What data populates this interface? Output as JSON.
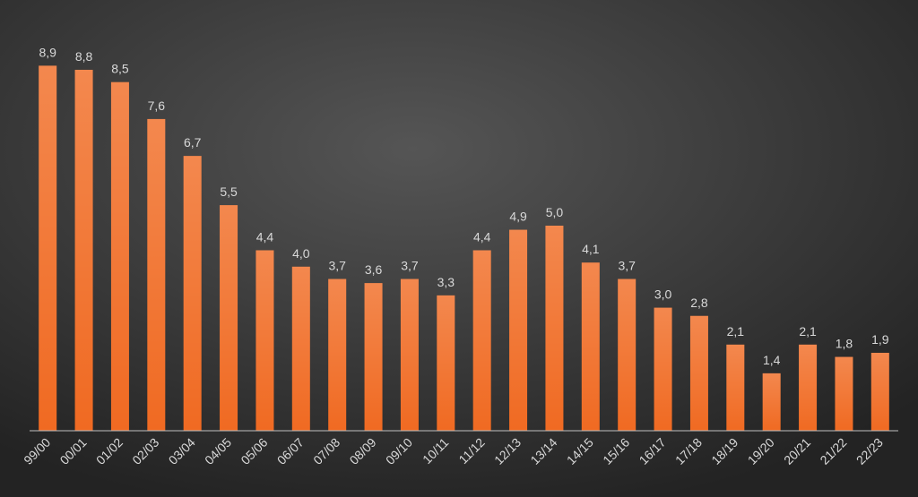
{
  "chart_data": {
    "type": "bar",
    "categories": [
      "99/00",
      "00/01",
      "01/02",
      "02/03",
      "03/04",
      "04/05",
      "05/06",
      "06/07",
      "07/08",
      "08/09",
      "09/10",
      "10/11",
      "11/12",
      "12/13",
      "13/14",
      "14/15",
      "15/16",
      "16/17",
      "17/18",
      "18/19",
      "19/20",
      "20/21",
      "21/22",
      "22/23"
    ],
    "values": [
      8.9,
      8.8,
      8.5,
      7.6,
      6.7,
      5.5,
      4.4,
      4.0,
      3.7,
      3.6,
      3.7,
      3.3,
      4.4,
      4.9,
      5.0,
      4.1,
      3.7,
      3.0,
      2.8,
      2.1,
      1.4,
      2.1,
      1.8,
      1.9
    ],
    "value_labels": [
      "8,9",
      "8,8",
      "8,5",
      "7,6",
      "6,7",
      "5,5",
      "4,4",
      "4,0",
      "3,7",
      "3,6",
      "3,7",
      "3,3",
      "4,4",
      "4,9",
      "5,0",
      "4,1",
      "3,7",
      "3,0",
      "2,8",
      "2,1",
      "1,4",
      "2,1",
      "1,8",
      "1,9"
    ],
    "color": "#f06a22"
  }
}
